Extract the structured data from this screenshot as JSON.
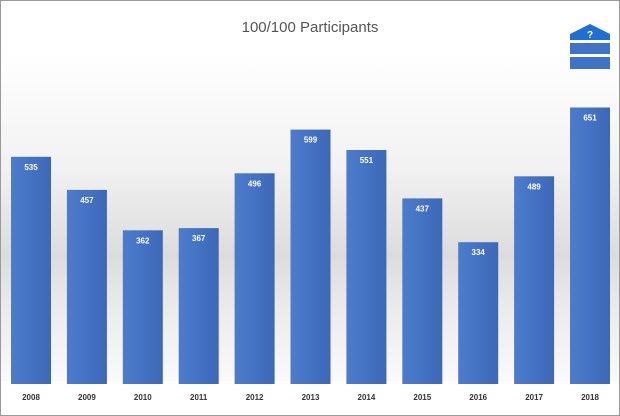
{
  "chart_data": {
    "type": "bar",
    "title": "100/100 Participants",
    "categories": [
      "2008",
      "2009",
      "2010",
      "2011",
      "2012",
      "2013",
      "2014",
      "2015",
      "2016",
      "2017",
      "2018"
    ],
    "values": [
      535,
      457,
      362,
      367,
      496,
      599,
      551,
      437,
      334,
      489,
      651
    ],
    "data_labels": true,
    "xlabel": "",
    "ylabel": "",
    "y_axis_visible": false,
    "grid": false,
    "legend": "none",
    "bar_color": "#4472c4",
    "annotation": {
      "category": "2018",
      "icon": "question-arrow-icon",
      "text": "?"
    }
  }
}
